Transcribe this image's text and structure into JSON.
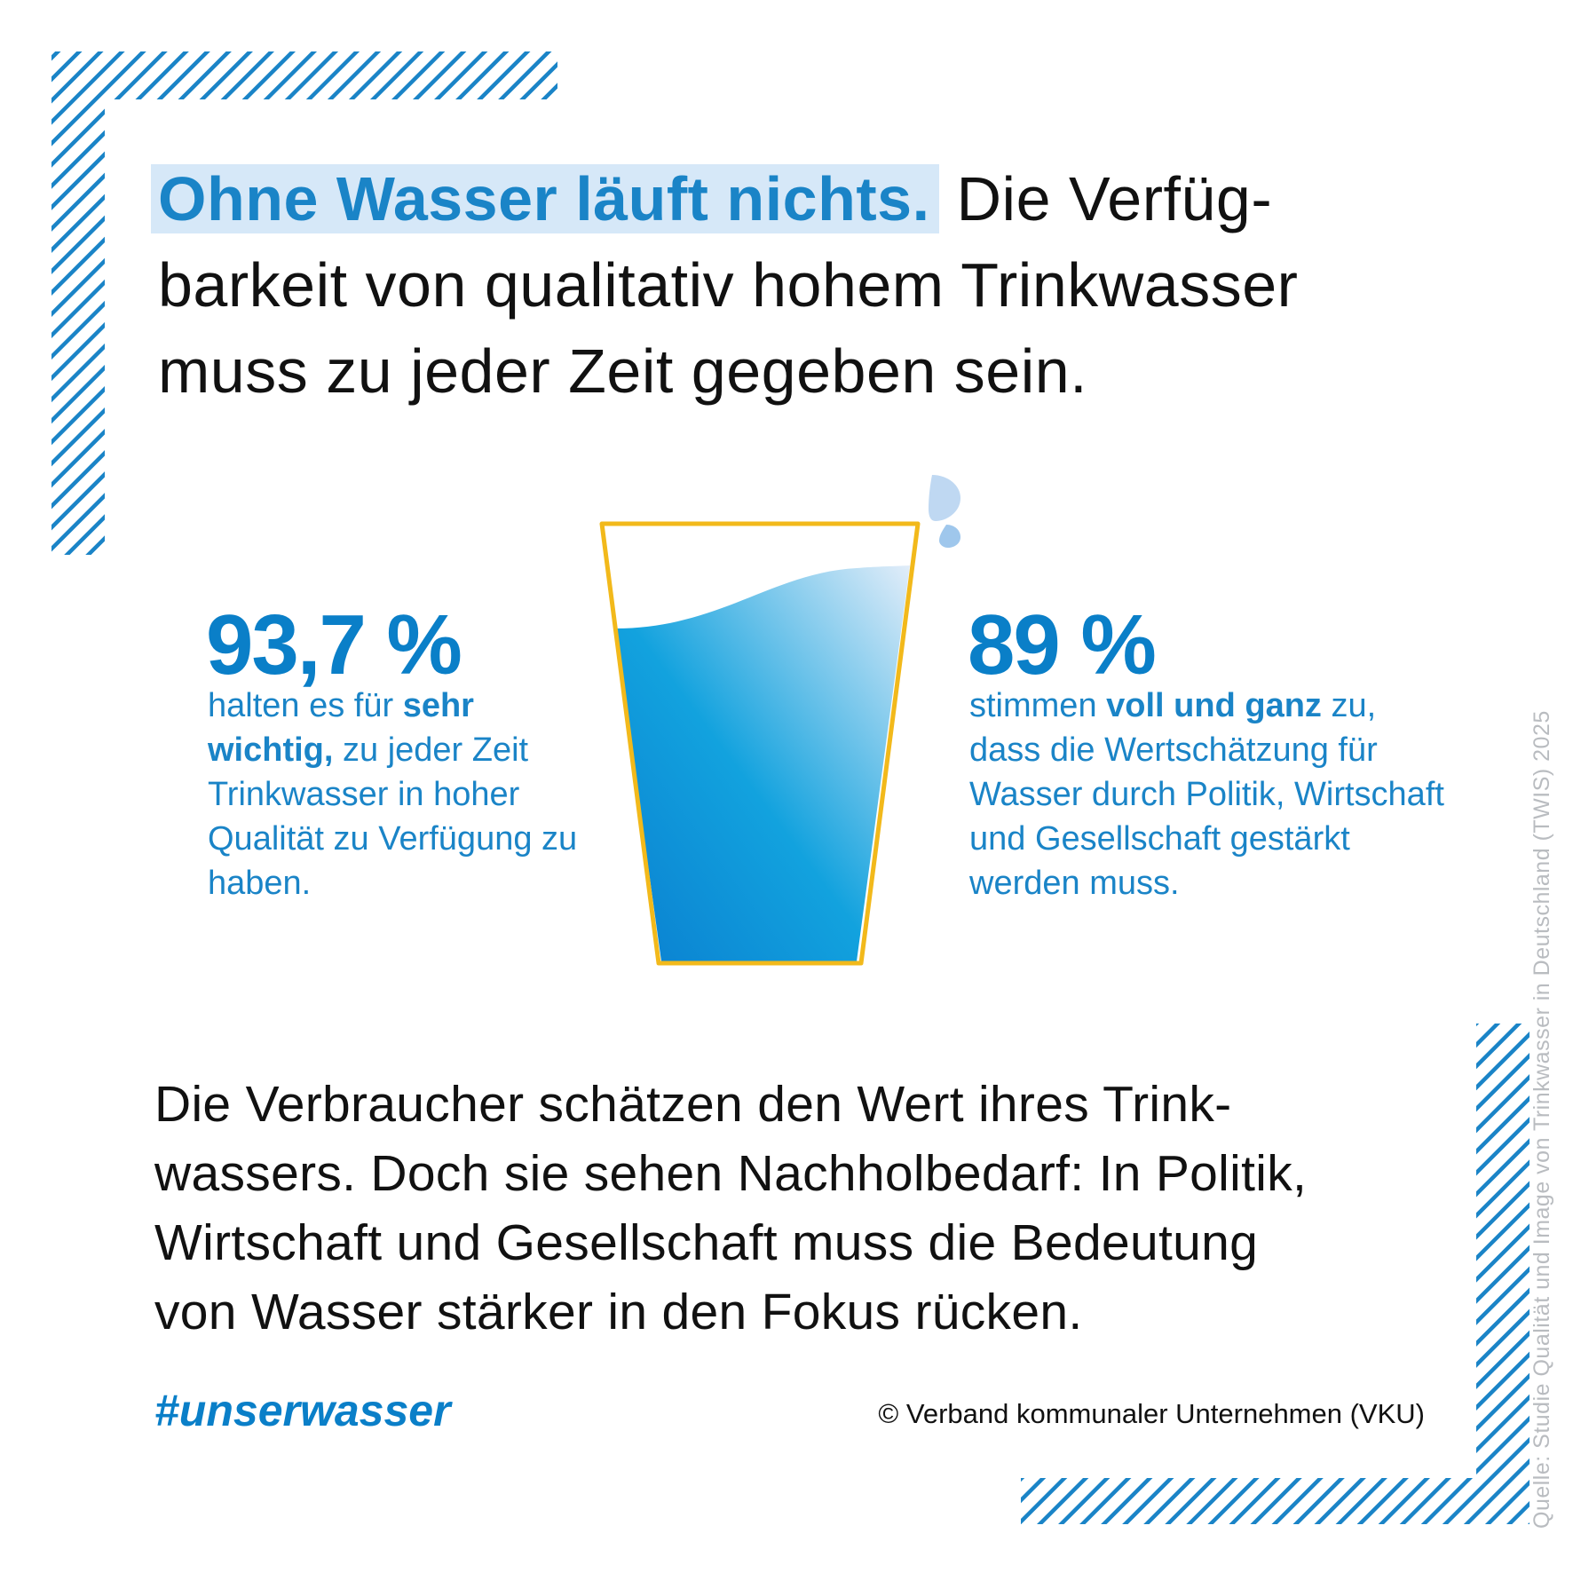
{
  "headline": {
    "highlight": "Ohne Wasser läuft nichts.",
    "line1_rest": "Die Verfüg-",
    "line2": "barkeit von qualitativ hohem Trinkwasser",
    "line3": "muss zu jeder Zeit gegeben sein."
  },
  "stat_left": {
    "value": "93,7 %",
    "text_before": "halten es für",
    "text_bold": "sehr wichtig,",
    "text_after": "zu jeder Zeit Trinkwasser in hoher Qualität zu Verfügung zu haben."
  },
  "stat_right": {
    "value": "89 %",
    "text_before": "stimmen",
    "text_bold": "voll und ganz",
    "text_after": "zu, dass die Wertschätzung für Wasser durch Politik, Wirtschaft und Gesellschaft gestärkt werden muss."
  },
  "body": {
    "line1": "Die Verbraucher schätzen den Wert ihres Trink-",
    "line2": "wassers. Doch sie sehen Nachholbedarf: In Politik,",
    "line3": "Wirtschaft und Gesellschaft muss die Bedeutung",
    "line4": "von Wasser stärker in den Fokus rücken."
  },
  "hashtag": "#unserwasser",
  "copyright": "© Verband kommunaler Unternehmen (VKU)",
  "source": "Quelle: Studie Qualität und Image von Trinkwasser in Deutschland (TWIS) 2025",
  "colors": {
    "accent_blue": "#0a7fc8",
    "highlight_bg": "#d6e8f8",
    "glass_outline": "#f2b91b",
    "water_dark": "#0a8ad6",
    "water_light": "#dce9f7",
    "hatch": "#1a84c7"
  },
  "icons": [
    "water-glass-icon",
    "water-drop-icon"
  ]
}
